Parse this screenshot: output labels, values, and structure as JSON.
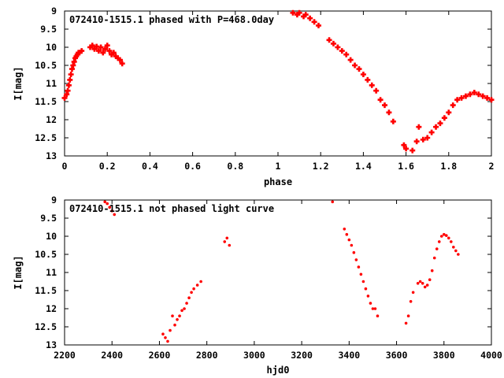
{
  "chart_data": [
    {
      "type": "scatter",
      "title": "072410-1515.1 phased with P=468.0day",
      "xlabel": "phase",
      "ylabel": "I[mag]",
      "xlim": [
        0,
        2
      ],
      "ylim": [
        9,
        13
      ],
      "y_inverted": true,
      "xticks": [
        "0",
        "0.2",
        "0.4",
        "0.6",
        "0.8",
        "1",
        "1.2",
        "1.4",
        "1.6",
        "1.8",
        "2"
      ],
      "xtick_values": [
        0,
        0.2,
        0.4,
        0.6,
        0.8,
        1.0,
        1.2,
        1.4,
        1.6,
        1.8,
        2.0
      ],
      "yticks": [
        "9",
        "9.5",
        "10",
        "10.5",
        "11",
        "11.5",
        "12",
        "12.5",
        "13"
      ],
      "ytick_values": [
        9,
        9.5,
        10,
        10.5,
        11,
        11.5,
        12,
        12.5,
        13
      ],
      "grid": false,
      "marker_color": "#ff0000",
      "marker": "plus",
      "series": [
        {
          "x": [
            0.0,
            0.01,
            0.015,
            0.02,
            0.025,
            0.03,
            0.035,
            0.04,
            0.045,
            0.05,
            0.055,
            0.06,
            0.065,
            0.07,
            0.08,
            0.12,
            0.13,
            0.14,
            0.15,
            0.16,
            0.17,
            0.18,
            0.19,
            0.2,
            0.21,
            0.22,
            0.23,
            0.24,
            0.25,
            0.26,
            0.27,
            1.07,
            1.09,
            1.1,
            1.12,
            1.13,
            1.15,
            1.17,
            1.19,
            1.24,
            1.26,
            1.28,
            1.3,
            1.32,
            1.34,
            1.36,
            1.38,
            1.4,
            1.42,
            1.44,
            1.46,
            1.48,
            1.5,
            1.52,
            1.54,
            1.59,
            1.6,
            1.63,
            1.65,
            1.66,
            1.68,
            1.7,
            1.72,
            1.74,
            1.76,
            1.78,
            1.8,
            1.82,
            1.84,
            1.86,
            1.88,
            1.9,
            1.92,
            1.94,
            1.96,
            1.98,
            2.0
          ],
          "y": [
            11.4,
            11.3,
            11.2,
            11.05,
            10.9,
            10.75,
            10.6,
            10.5,
            10.4,
            10.3,
            10.25,
            10.2,
            10.15,
            10.15,
            10.1,
            10.0,
            9.95,
            10.05,
            9.98,
            10.1,
            10.0,
            10.15,
            10.05,
            9.95,
            10.1,
            10.2,
            10.15,
            10.25,
            10.3,
            10.35,
            10.45,
            9.05,
            9.1,
            9.05,
            9.15,
            9.1,
            9.2,
            9.3,
            9.4,
            9.8,
            9.9,
            10.0,
            10.1,
            10.2,
            10.35,
            10.5,
            10.6,
            10.75,
            10.9,
            11.05,
            11.2,
            11.45,
            11.6,
            11.8,
            12.05,
            12.7,
            12.8,
            12.85,
            12.6,
            12.2,
            12.55,
            12.5,
            12.35,
            12.2,
            12.1,
            11.95,
            11.8,
            11.6,
            11.45,
            11.4,
            11.35,
            11.3,
            11.25,
            11.3,
            11.35,
            11.4,
            11.45
          ]
        }
      ]
    },
    {
      "type": "scatter",
      "title": "072410-1515.1 not phased light curve",
      "xlabel": "hjd0",
      "ylabel": "I[mag]",
      "xlim": [
        2200,
        4000
      ],
      "ylim": [
        9,
        13
      ],
      "y_inverted": true,
      "xticks": [
        "2200",
        "2400",
        "2600",
        "2800",
        "3000",
        "3200",
        "3400",
        "3600",
        "3800",
        "4000"
      ],
      "xtick_values": [
        2200,
        2400,
        2600,
        2800,
        3000,
        3200,
        3400,
        3600,
        3800,
        4000
      ],
      "yticks": [
        "9",
        "9.5",
        "10",
        "10.5",
        "11",
        "11.5",
        "12",
        "12.5",
        "13"
      ],
      "ytick_values": [
        9,
        9.5,
        10,
        10.5,
        11,
        11.5,
        12,
        12.5,
        13
      ],
      "grid": false,
      "marker_color": "#ff0000",
      "marker": "dot",
      "series": [
        {
          "x": [
            2370,
            2380,
            2390,
            2400,
            2410,
            2615,
            2625,
            2635,
            2645,
            2655,
            2665,
            2675,
            2685,
            2695,
            2705,
            2715,
            2725,
            2735,
            2745,
            2760,
            2775,
            2875,
            2885,
            2895,
            3330,
            3380,
            3390,
            3400,
            3410,
            3420,
            3430,
            3440,
            3450,
            3460,
            3470,
            3480,
            3490,
            3500,
            3510,
            3520,
            3640,
            3650,
            3660,
            3670,
            3690,
            3700,
            3710,
            3720,
            3730,
            3740,
            3750,
            3760,
            3770,
            3780,
            3790,
            3800,
            3810,
            3820,
            3830,
            3840,
            3850,
            3860
          ],
          "y": [
            9.05,
            9.1,
            9.2,
            9.3,
            9.4,
            12.7,
            12.8,
            12.9,
            12.6,
            12.2,
            12.45,
            12.3,
            12.2,
            12.05,
            12.0,
            11.85,
            11.7,
            11.55,
            11.45,
            11.35,
            11.25,
            10.15,
            10.05,
            10.25,
            9.05,
            9.8,
            9.95,
            10.1,
            10.25,
            10.45,
            10.65,
            10.85,
            11.05,
            11.25,
            11.45,
            11.65,
            11.85,
            12.0,
            12.0,
            12.2,
            12.4,
            12.2,
            11.8,
            11.55,
            11.3,
            11.25,
            11.3,
            11.4,
            11.35,
            11.2,
            10.95,
            10.6,
            10.35,
            10.15,
            10.0,
            9.95,
            9.98,
            10.05,
            10.15,
            10.3,
            10.4,
            10.5
          ]
        }
      ]
    }
  ]
}
